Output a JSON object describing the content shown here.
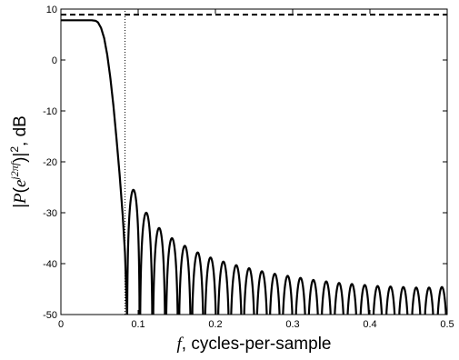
{
  "chart_data": {
    "type": "line",
    "xlabel_symbol": "f",
    "xlabel": ", cycles-per-sample",
    "ylabel": "|P(e^{j2πf})|², dB",
    "ylabel_parts": {
      "open": "|",
      "func": "P",
      "paren_open": "(",
      "base": "e",
      "exponent": "j2πf",
      "paren_close": ")",
      "close": "|",
      "power": "2",
      "unit": ", dB"
    },
    "xlim": [
      0,
      0.5
    ],
    "ylim": [
      -50,
      10
    ],
    "xticks": [
      0,
      0.1,
      0.2,
      0.3,
      0.4,
      0.5
    ],
    "xtick_labels": [
      "0",
      "0.1",
      "0.2",
      "0.3",
      "0.4",
      "0.5"
    ],
    "yticks": [
      -50,
      -40,
      -30,
      -20,
      -10,
      0,
      10
    ],
    "ytick_labels": [
      "-50",
      "-40",
      "-30",
      "-20",
      "-10",
      "0",
      "10"
    ],
    "grid": false,
    "legend": "none",
    "series": [
      {
        "style": "solid",
        "color": "#000000",
        "description": "windowed-sinc lowpass magnitude response: passband level ≈ 7.8 dB for f < 0.05, main-lobe roll-off to first null at f ≈ 0.085, decaying sidelobes with nulls every ≈ 0.0166 cycles-per-sample",
        "passband_level_db": 7.8,
        "passband_edge": 0.048,
        "first_null": 0.0855,
        "null_spacing": 0.01664,
        "first_sidelobe_peak_db": -25.5,
        "sidelobe_floor_db": -50,
        "points": [
          [
            0.0,
            7.8
          ],
          [
            0.01,
            7.8
          ],
          [
            0.02,
            7.8
          ],
          [
            0.03,
            7.8
          ],
          [
            0.04,
            7.8
          ],
          [
            0.045,
            7.7
          ],
          [
            0.048,
            7.4
          ],
          [
            0.052,
            6.3
          ],
          [
            0.056,
            4.3
          ],
          [
            0.06,
            1.0
          ],
          [
            0.064,
            -3.5
          ],
          [
            0.068,
            -9.0
          ],
          [
            0.072,
            -15.5
          ],
          [
            0.076,
            -22.5
          ],
          [
            0.08,
            -30.5
          ],
          [
            0.083,
            -38.0
          ],
          [
            0.0855,
            -50.0
          ],
          [
            0.0938,
            -25.5
          ],
          [
            0.102,
            -50.0
          ],
          [
            0.11,
            -30.0
          ],
          [
            0.1186,
            -50.0
          ],
          [
            0.127,
            -33.0
          ],
          [
            0.1353,
            -50.0
          ],
          [
            0.144,
            -35.0
          ],
          [
            0.152,
            -50.0
          ],
          [
            0.16,
            -36.5
          ],
          [
            0.1686,
            -50.0
          ],
          [
            0.177,
            -37.8
          ],
          [
            0.1852,
            -50.0
          ],
          [
            0.193,
            -38.8
          ],
          [
            0.2019,
            -50.0
          ],
          [
            0.21,
            -39.6
          ],
          [
            0.2185,
            -50.0
          ],
          [
            0.227,
            -40.3
          ],
          [
            0.2352,
            -50.0
          ],
          [
            0.243,
            -40.9
          ],
          [
            0.2518,
            -50.0
          ],
          [
            0.26,
            -41.5
          ],
          [
            0.2685,
            -50.0
          ],
          [
            0.277,
            -42.0
          ],
          [
            0.2851,
            -50.0
          ],
          [
            0.293,
            -42.4
          ],
          [
            0.3018,
            -50.0
          ],
          [
            0.31,
            -42.8
          ],
          [
            0.3184,
            -50.0
          ],
          [
            0.327,
            -43.2
          ],
          [
            0.3351,
            -50.0
          ],
          [
            0.343,
            -43.5
          ],
          [
            0.3517,
            -50.0
          ],
          [
            0.36,
            -43.8
          ],
          [
            0.3684,
            -50.0
          ],
          [
            0.377,
            -44.0
          ],
          [
            0.385,
            -50.0
          ],
          [
            0.393,
            -44.2
          ],
          [
            0.4017,
            -50.0
          ],
          [
            0.41,
            -44.4
          ],
          [
            0.4183,
            -50.0
          ],
          [
            0.427,
            -44.5
          ],
          [
            0.435,
            -50.0
          ],
          [
            0.443,
            -44.6
          ],
          [
            0.4516,
            -50.0
          ],
          [
            0.46,
            -44.7
          ],
          [
            0.4683,
            -50.0
          ],
          [
            0.477,
            -44.7
          ],
          [
            0.4849,
            -50.0
          ],
          [
            0.493,
            -44.6
          ],
          [
            0.5,
            -44.0
          ]
        ]
      },
      {
        "style": "dashed",
        "color": "#000000",
        "description": "horizontal reference level",
        "points": [
          [
            0,
            8.9
          ],
          [
            0.5,
            8.9
          ]
        ]
      },
      {
        "style": "dotted",
        "color": "#000000",
        "description": "vertical marker at cutoff frequency",
        "points": [
          [
            0.083,
            -50
          ],
          [
            0.083,
            10
          ]
        ]
      }
    ]
  }
}
